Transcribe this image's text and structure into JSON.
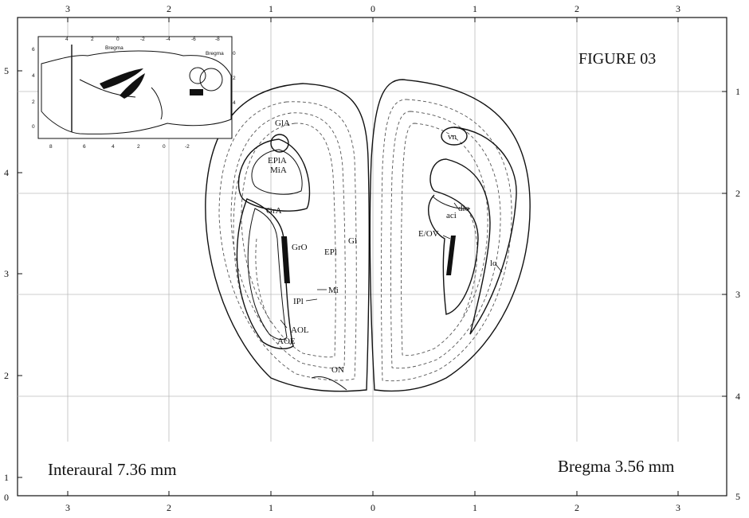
{
  "figure": {
    "title": "FIGURE 03"
  },
  "coordinates": {
    "interaural": "Interaural 7.36 mm",
    "bregma": "Bregma 3.56 mm"
  },
  "axes": {
    "top": [
      "3",
      "2",
      "1",
      "0",
      "1",
      "2",
      "3"
    ],
    "bottom": [
      "3",
      "2",
      "1",
      "0",
      "1",
      "2",
      "3"
    ],
    "left": [
      "5",
      "4",
      "3",
      "2",
      "1",
      "0"
    ],
    "right": [
      "1",
      "2",
      "3",
      "4",
      "5"
    ]
  },
  "inset": {
    "label_top": "Bregma",
    "label_right": "Bregma",
    "top_ticks": [
      "4",
      "2",
      "0",
      "-2",
      "-4",
      "-6",
      "-8"
    ],
    "bottom_ticks": [
      "8",
      "6",
      "4",
      "2",
      "0",
      "-2"
    ],
    "left_ticks": [
      "6",
      "4",
      "2",
      "0"
    ],
    "right_ticks": [
      "0",
      "2",
      "4"
    ]
  },
  "structures": {
    "glA": "GlA",
    "eplA": "EPlA",
    "miA": "MiA",
    "grA": "GrA",
    "grO": "GrO",
    "epl": "EPl",
    "gl": "Gl",
    "mi": "Mi",
    "ipl": "IPl",
    "aol": "AOL",
    "aoe": "AOE",
    "on": "ON",
    "vn": "vn",
    "dlo": "dlo",
    "aci": "aci",
    "eov": "E/OV",
    "lo": "lo"
  }
}
